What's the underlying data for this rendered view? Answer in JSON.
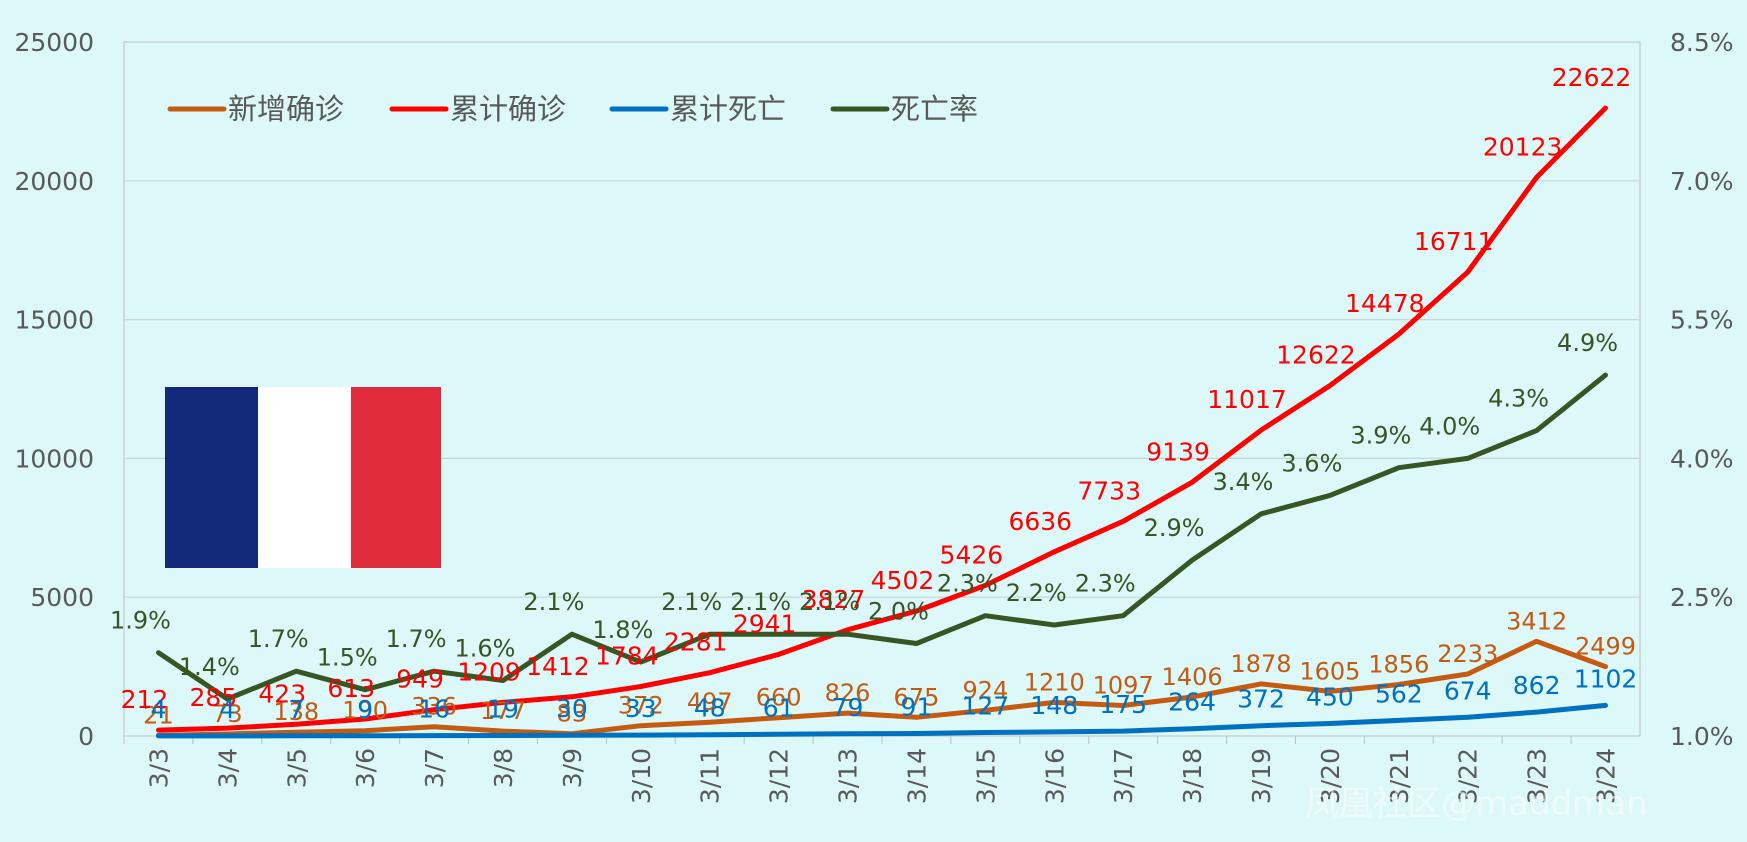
{
  "chart_data": {
    "type": "line",
    "categories": [
      "3/3",
      "3/4",
      "3/5",
      "3/6",
      "3/7",
      "3/8",
      "3/9",
      "3/10",
      "3/11",
      "3/12",
      "3/13",
      "3/14",
      "3/15",
      "3/16",
      "3/17",
      "3/18",
      "3/19",
      "3/20",
      "3/21",
      "3/22",
      "3/23",
      "3/24"
    ],
    "ylim": [
      0,
      25000
    ],
    "yticks": [
      "0",
      "5000",
      "10000",
      "15000",
      "20000",
      "25000"
    ],
    "y2lim": [
      1.0,
      8.5
    ],
    "y2ticks": [
      "1.0%",
      "2.5%",
      "4.0%",
      "5.5%",
      "7.0%",
      "8.5%"
    ],
    "legend_position": "top-left",
    "grid": true,
    "series": [
      {
        "name": "新增确诊",
        "axis": "left",
        "color": "#c55a11",
        "values": [
          21,
          73,
          138,
          190,
          336,
          177,
          83,
          372,
          497,
          660,
          826,
          675,
          924,
          1210,
          1097,
          1406,
          1878,
          1605,
          1856,
          2233,
          3412,
          2499
        ],
        "labels": [
          "21",
          "73",
          "138",
          "190",
          "336",
          "177",
          "83",
          "372",
          "497",
          "660",
          "826",
          "675",
          "924",
          "1210",
          "1097",
          "1406",
          "1878",
          "1605",
          "1856",
          "2233",
          "3412",
          "2499"
        ]
      },
      {
        "name": "累计确诊",
        "axis": "left",
        "color": "#ff0000",
        "values": [
          212,
          285,
          423,
          613,
          949,
          1209,
          1412,
          1784,
          2281,
          2941,
          3827,
          4502,
          5426,
          6636,
          7733,
          9139,
          11017,
          12622,
          14478,
          16711,
          20123,
          22622
        ],
        "labels": [
          "212",
          "285",
          "423",
          "613",
          "949",
          "1209",
          "1412",
          "1784",
          "2281",
          "2941",
          "3827",
          "4502",
          "5426",
          "6636",
          "7733",
          "9139",
          "11017",
          "12622",
          "14478",
          "16711",
          "20123",
          "22622"
        ]
      },
      {
        "name": "累计死亡",
        "axis": "left",
        "color": "#0070c0",
        "values": [
          4,
          4,
          7,
          9,
          16,
          19,
          30,
          33,
          48,
          61,
          79,
          91,
          127,
          148,
          175,
          264,
          372,
          450,
          562,
          674,
          862,
          1102
        ],
        "labels": [
          "4",
          "4",
          "7",
          "9",
          "16",
          "19",
          "30",
          "33",
          "48",
          "61",
          "79",
          "91",
          "127",
          "148",
          "175",
          "264",
          "372",
          "450",
          "562",
          "674",
          "862",
          "1102"
        ]
      },
      {
        "name": "死亡率",
        "axis": "right",
        "color": "#375623",
        "values": [
          1.9,
          1.4,
          1.7,
          1.5,
          1.7,
          1.6,
          2.1,
          1.8,
          2.1,
          2.1,
          2.1,
          2.0,
          2.3,
          2.2,
          2.3,
          2.9,
          3.4,
          3.6,
          3.9,
          4.0,
          4.3,
          4.9
        ],
        "labels": [
          "1.9%",
          "1.4%",
          "1.7%",
          "1.5%",
          "1.7%",
          "1.6%",
          "2.1%",
          "1.8%",
          "2.1%",
          "2.1%",
          "2.1%",
          "2.0%",
          "2.3%",
          "2.2%",
          "2.3%",
          "2.9%",
          "3.4%",
          "3.6%",
          "3.9%",
          "4.0%",
          "4.3%",
          "4.9%"
        ]
      }
    ]
  },
  "flag": {
    "colors": [
      "#13297a",
      "#ffffff",
      "#e02b3c"
    ]
  },
  "watermark": "凤凰社区@maddman"
}
